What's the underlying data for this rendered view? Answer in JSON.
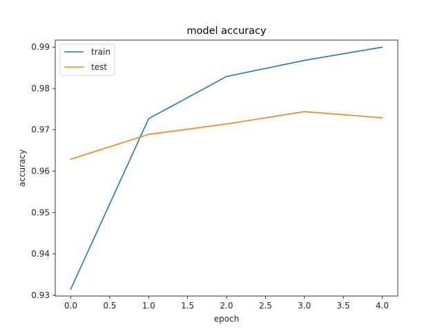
{
  "chart_data": {
    "type": "line",
    "title": "model accuracy",
    "xlabel": "epoch",
    "ylabel": "accuracy",
    "x": [
      0,
      1,
      2,
      3,
      4
    ],
    "xlim": [
      -0.2,
      4.2
    ],
    "ylim": [
      0.9298,
      0.9917
    ],
    "xticks": [
      "0.0",
      "0.5",
      "1.0",
      "1.5",
      "2.0",
      "2.5",
      "3.0",
      "3.5",
      "4.0"
    ],
    "yticks": [
      "0.93",
      "0.94",
      "0.95",
      "0.96",
      "0.97",
      "0.98",
      "0.99"
    ],
    "grid": false,
    "legend_position": "top-left",
    "series": [
      {
        "name": "train",
        "color": "#1f77b4",
        "values": [
          0.9315,
          0.9727,
          0.9829,
          0.9868,
          0.99
        ]
      },
      {
        "name": "test",
        "color": "#ff7f0e",
        "values": [
          0.9629,
          0.9689,
          0.9714,
          0.9744,
          0.9729
        ]
      }
    ]
  }
}
